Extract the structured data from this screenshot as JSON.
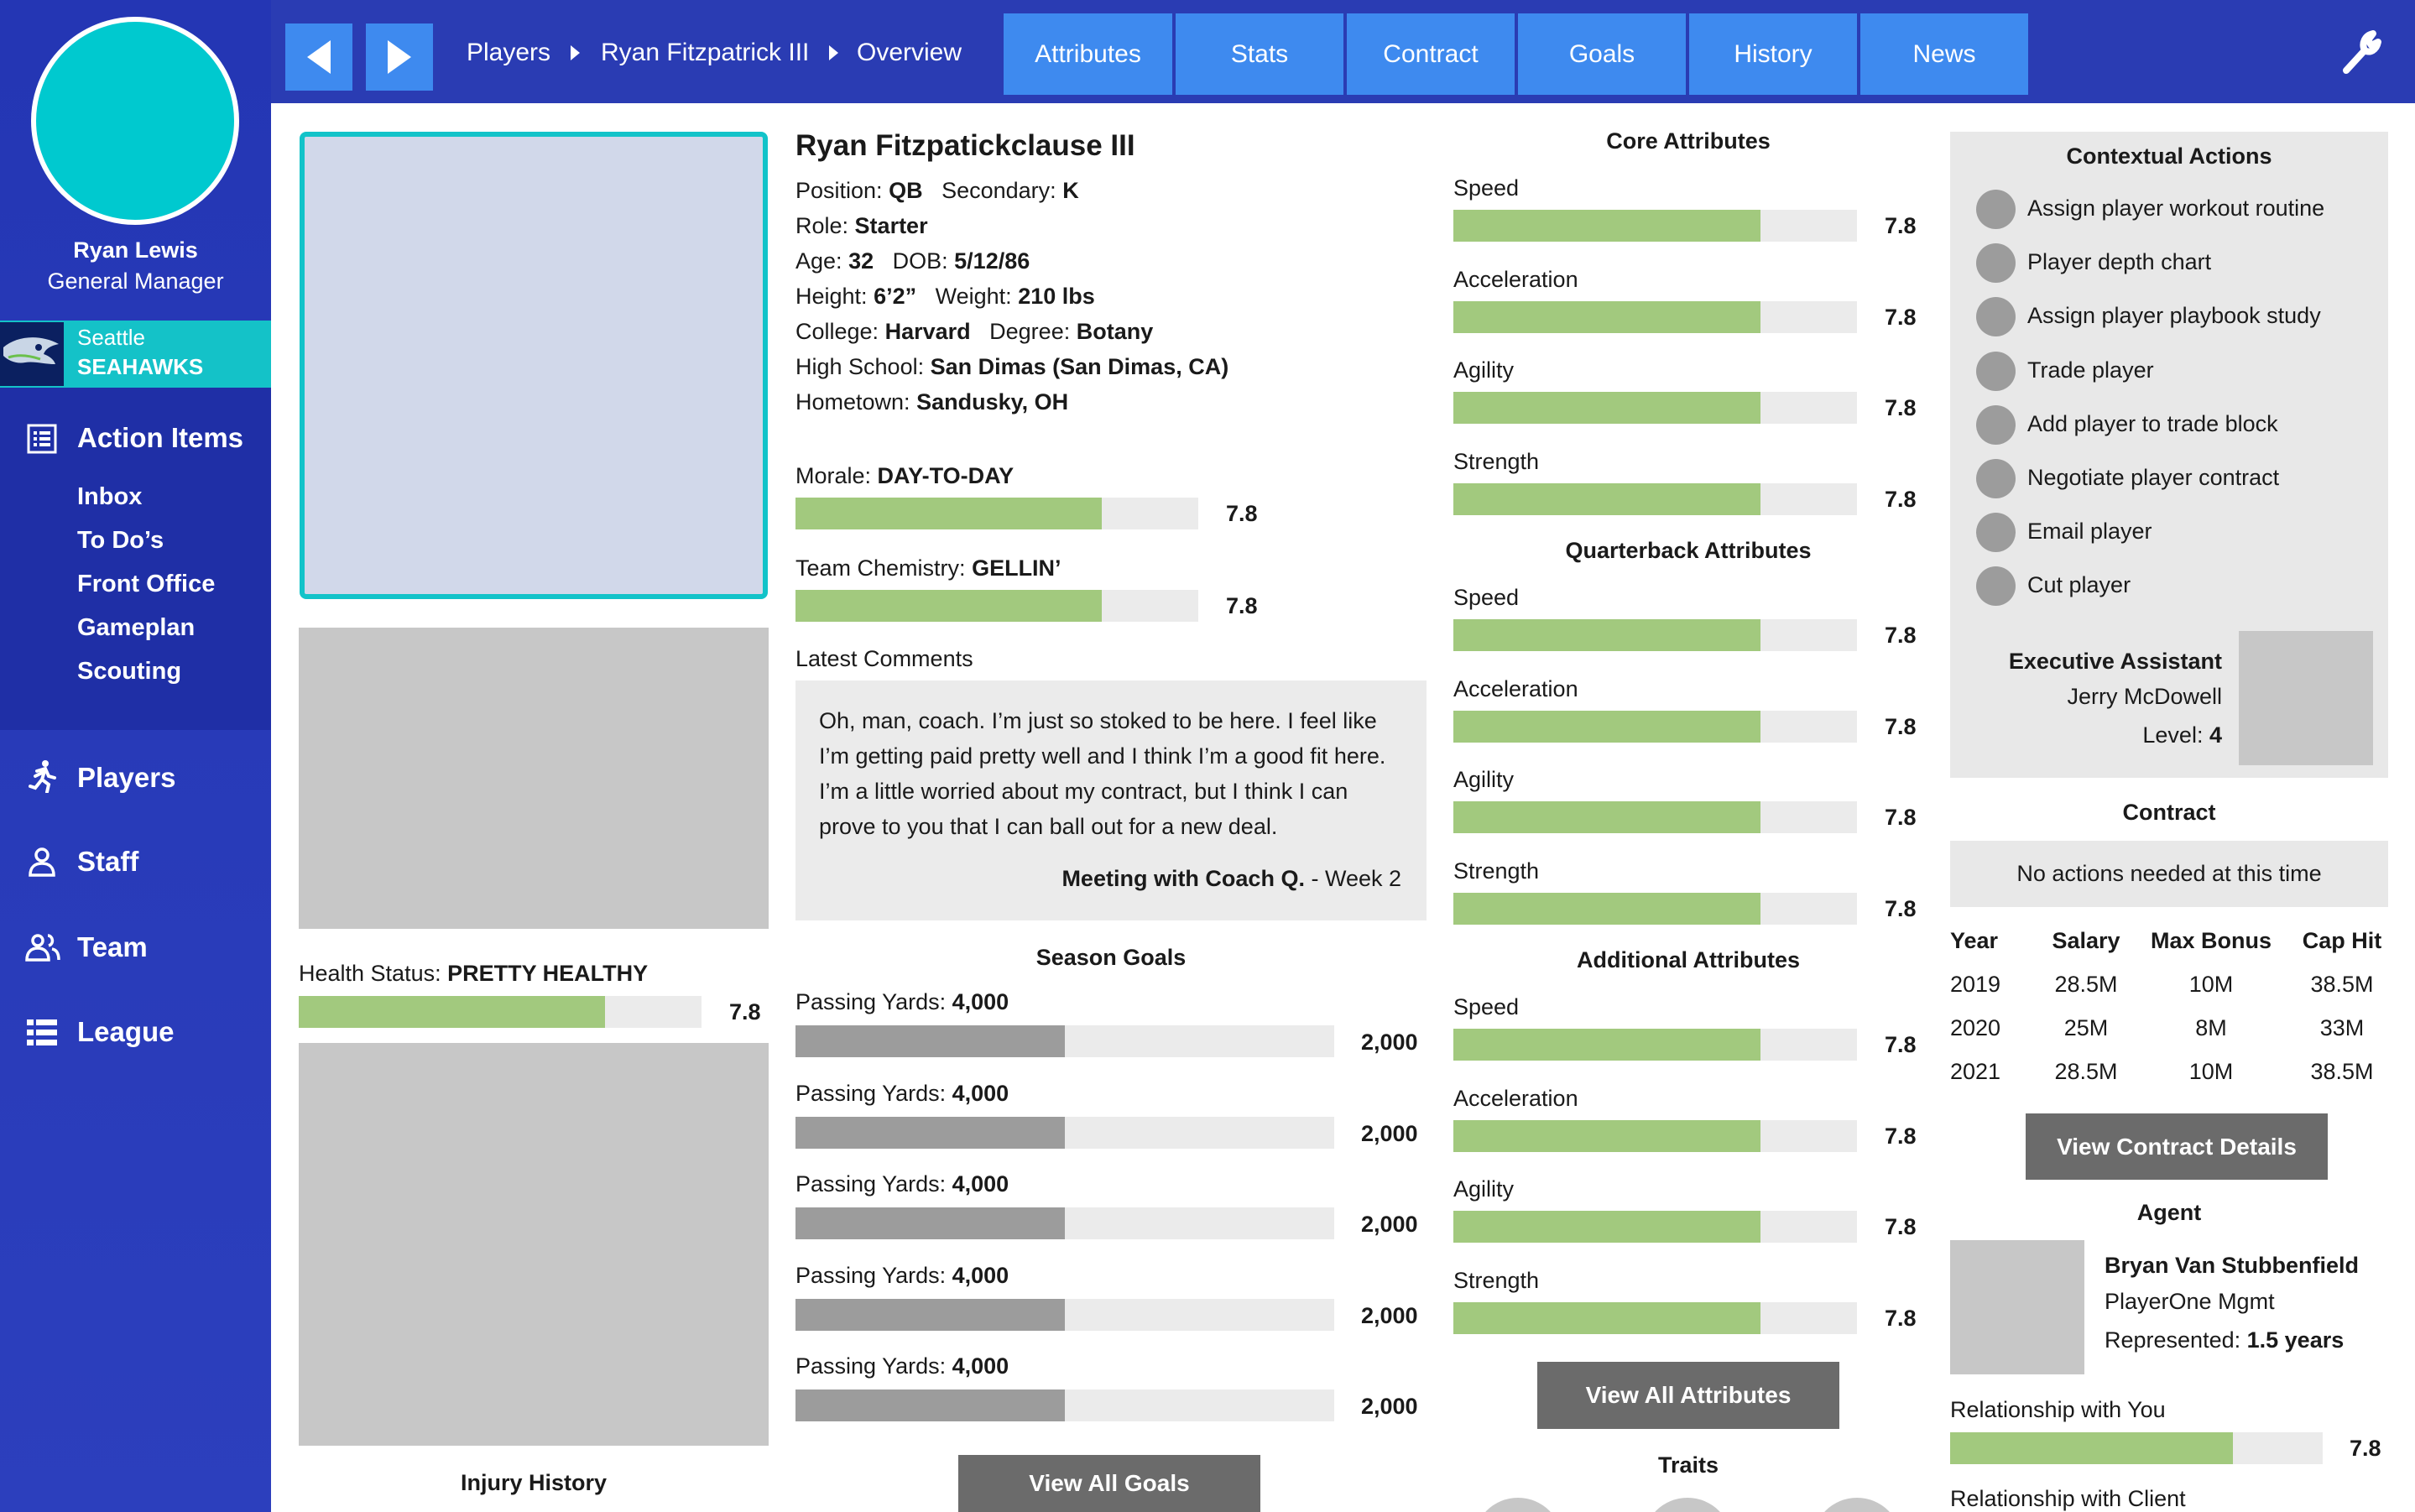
{
  "user": {
    "name": "Ryan Lewis",
    "role": "General Manager"
  },
  "team": {
    "city": "Seattle",
    "name": "SEAHAWKS"
  },
  "sidebar": {
    "action_items": {
      "label": "Action Items",
      "items": [
        "Inbox",
        "To Do’s",
        "Front Office",
        "Gameplan",
        "Scouting"
      ]
    },
    "nav": [
      {
        "label": "Players",
        "icon": "runner-icon"
      },
      {
        "label": "Staff",
        "icon": "person-icon"
      },
      {
        "label": "Team",
        "icon": "group-icon"
      },
      {
        "label": "League",
        "icon": "list-icon"
      }
    ]
  },
  "breadcrumb": [
    "Players",
    "Ryan Fitzpatrick III",
    "Overview"
  ],
  "tabs": [
    "Attributes",
    "Stats",
    "Contract",
    "Goals",
    "History",
    "News"
  ],
  "player": {
    "name": "Ryan Fitzpatickclause III",
    "position_label": "Position:",
    "position": "QB",
    "secondary_label": "Secondary:",
    "secondary": "K",
    "role_label": "Role:",
    "role": "Starter",
    "age_label": "Age:",
    "age": "32",
    "dob_label": "DOB:",
    "dob": "5/12/86",
    "height_label": "Height:",
    "height": "6’2”",
    "weight_label": "Weight:",
    "weight": "210 lbs",
    "college_label": "College:",
    "college": "Harvard",
    "degree_label": "Degree:",
    "degree": "Botany",
    "highschool_label": "High School:",
    "highschool": "San Dimas (San Dimas, CA)",
    "hometown_label": "Hometown:",
    "hometown": "Sandusky, OH"
  },
  "morale": {
    "label": "Morale:",
    "value": "DAY-TO-DAY",
    "score": "7.8",
    "fill": 0.76
  },
  "chemistry": {
    "label": "Team Chemistry:",
    "value": "GELLIN’",
    "score": "7.8",
    "fill": 0.76
  },
  "health": {
    "label": "Health Status:",
    "value": "PRETTY HEALTHY",
    "score": "7.8",
    "fill": 0.76
  },
  "injury_history_label": "Injury History",
  "comments": {
    "label": "Latest Comments",
    "text": "Oh, man, coach. I’m just so stoked to be here. I feel like I’m getting paid pretty well and I think I’m a good fit here. I’m a little worried about my contract, but I think I can prove to you that I can ball out for a new deal.",
    "source": "Meeting with Coach Q.",
    "when": " - Week 2"
  },
  "season_goals": {
    "label": "Season Goals",
    "items": [
      {
        "label": "Passing Yards:",
        "target": "4,000",
        "current": "2,000",
        "fill": 0.5
      },
      {
        "label": "Passing Yards:",
        "target": "4,000",
        "current": "2,000",
        "fill": 0.5
      },
      {
        "label": "Passing Yards:",
        "target": "4,000",
        "current": "2,000",
        "fill": 0.5
      },
      {
        "label": "Passing Yards:",
        "target": "4,000",
        "current": "2,000",
        "fill": 0.5
      },
      {
        "label": "Passing Yards:",
        "target": "4,000",
        "current": "2,000",
        "fill": 0.5
      }
    ],
    "button": "View All Goals"
  },
  "attribute_groups": [
    {
      "title": "Core Attributes",
      "items": [
        {
          "label": "Speed",
          "value": "7.8",
          "fill": 0.76
        },
        {
          "label": "Acceleration",
          "value": "7.8",
          "fill": 0.76
        },
        {
          "label": "Agility",
          "value": "7.8",
          "fill": 0.76
        },
        {
          "label": "Strength",
          "value": "7.8",
          "fill": 0.76
        }
      ]
    },
    {
      "title": "Quarterback Attributes",
      "items": [
        {
          "label": "Speed",
          "value": "7.8",
          "fill": 0.76
        },
        {
          "label": "Acceleration",
          "value": "7.8",
          "fill": 0.76
        },
        {
          "label": "Agility",
          "value": "7.8",
          "fill": 0.76
        },
        {
          "label": "Strength",
          "value": "7.8",
          "fill": 0.76
        }
      ]
    },
    {
      "title": "Additional Attributes",
      "items": [
        {
          "label": "Speed",
          "value": "7.8",
          "fill": 0.76
        },
        {
          "label": "Acceleration",
          "value": "7.8",
          "fill": 0.76
        },
        {
          "label": "Agility",
          "value": "7.8",
          "fill": 0.76
        },
        {
          "label": "Strength",
          "value": "7.8",
          "fill": 0.76
        }
      ]
    }
  ],
  "attributes_button": "View All Attributes",
  "traits_label": "Traits",
  "contextual_actions": {
    "title": "Contextual Actions",
    "items": [
      "Assign player workout routine",
      "Player depth chart",
      "Assign player playbook study",
      "Trade player",
      "Add player to trade block",
      "Negotiate player contract",
      "Email player",
      "Cut player"
    ]
  },
  "exec_assistant": {
    "title": "Executive Assistant",
    "name": "Jerry McDowell",
    "level_label": "Level:",
    "level": "4"
  },
  "contract": {
    "title": "Contract",
    "notice": "No actions needed at this time",
    "columns": [
      "Year",
      "Salary",
      "Max Bonus",
      "Cap Hit"
    ],
    "rows": [
      [
        "2019",
        "28.5M",
        "10M",
        "38.5M"
      ],
      [
        "2020",
        "25M",
        "8M",
        "33M"
      ],
      [
        "2021",
        "28.5M",
        "10M",
        "38.5M"
      ]
    ],
    "button": "View Contract Details"
  },
  "agent": {
    "title": "Agent",
    "name": "Bryan Van Stubbenfield",
    "company": "PlayerOne Mgmt",
    "represented_label": "Represented:",
    "represented": "1.5 years"
  },
  "relationship_you": {
    "label": "Relationship with You",
    "value": "7.8",
    "fill": 0.76
  },
  "relationship_client": {
    "label": "Relationship with Client"
  },
  "colors": {
    "brand_blue": "#2a3cb3",
    "nav_blue": "#3e8aef",
    "teal": "#00c9cf",
    "bar_green": "#a2c97e"
  }
}
